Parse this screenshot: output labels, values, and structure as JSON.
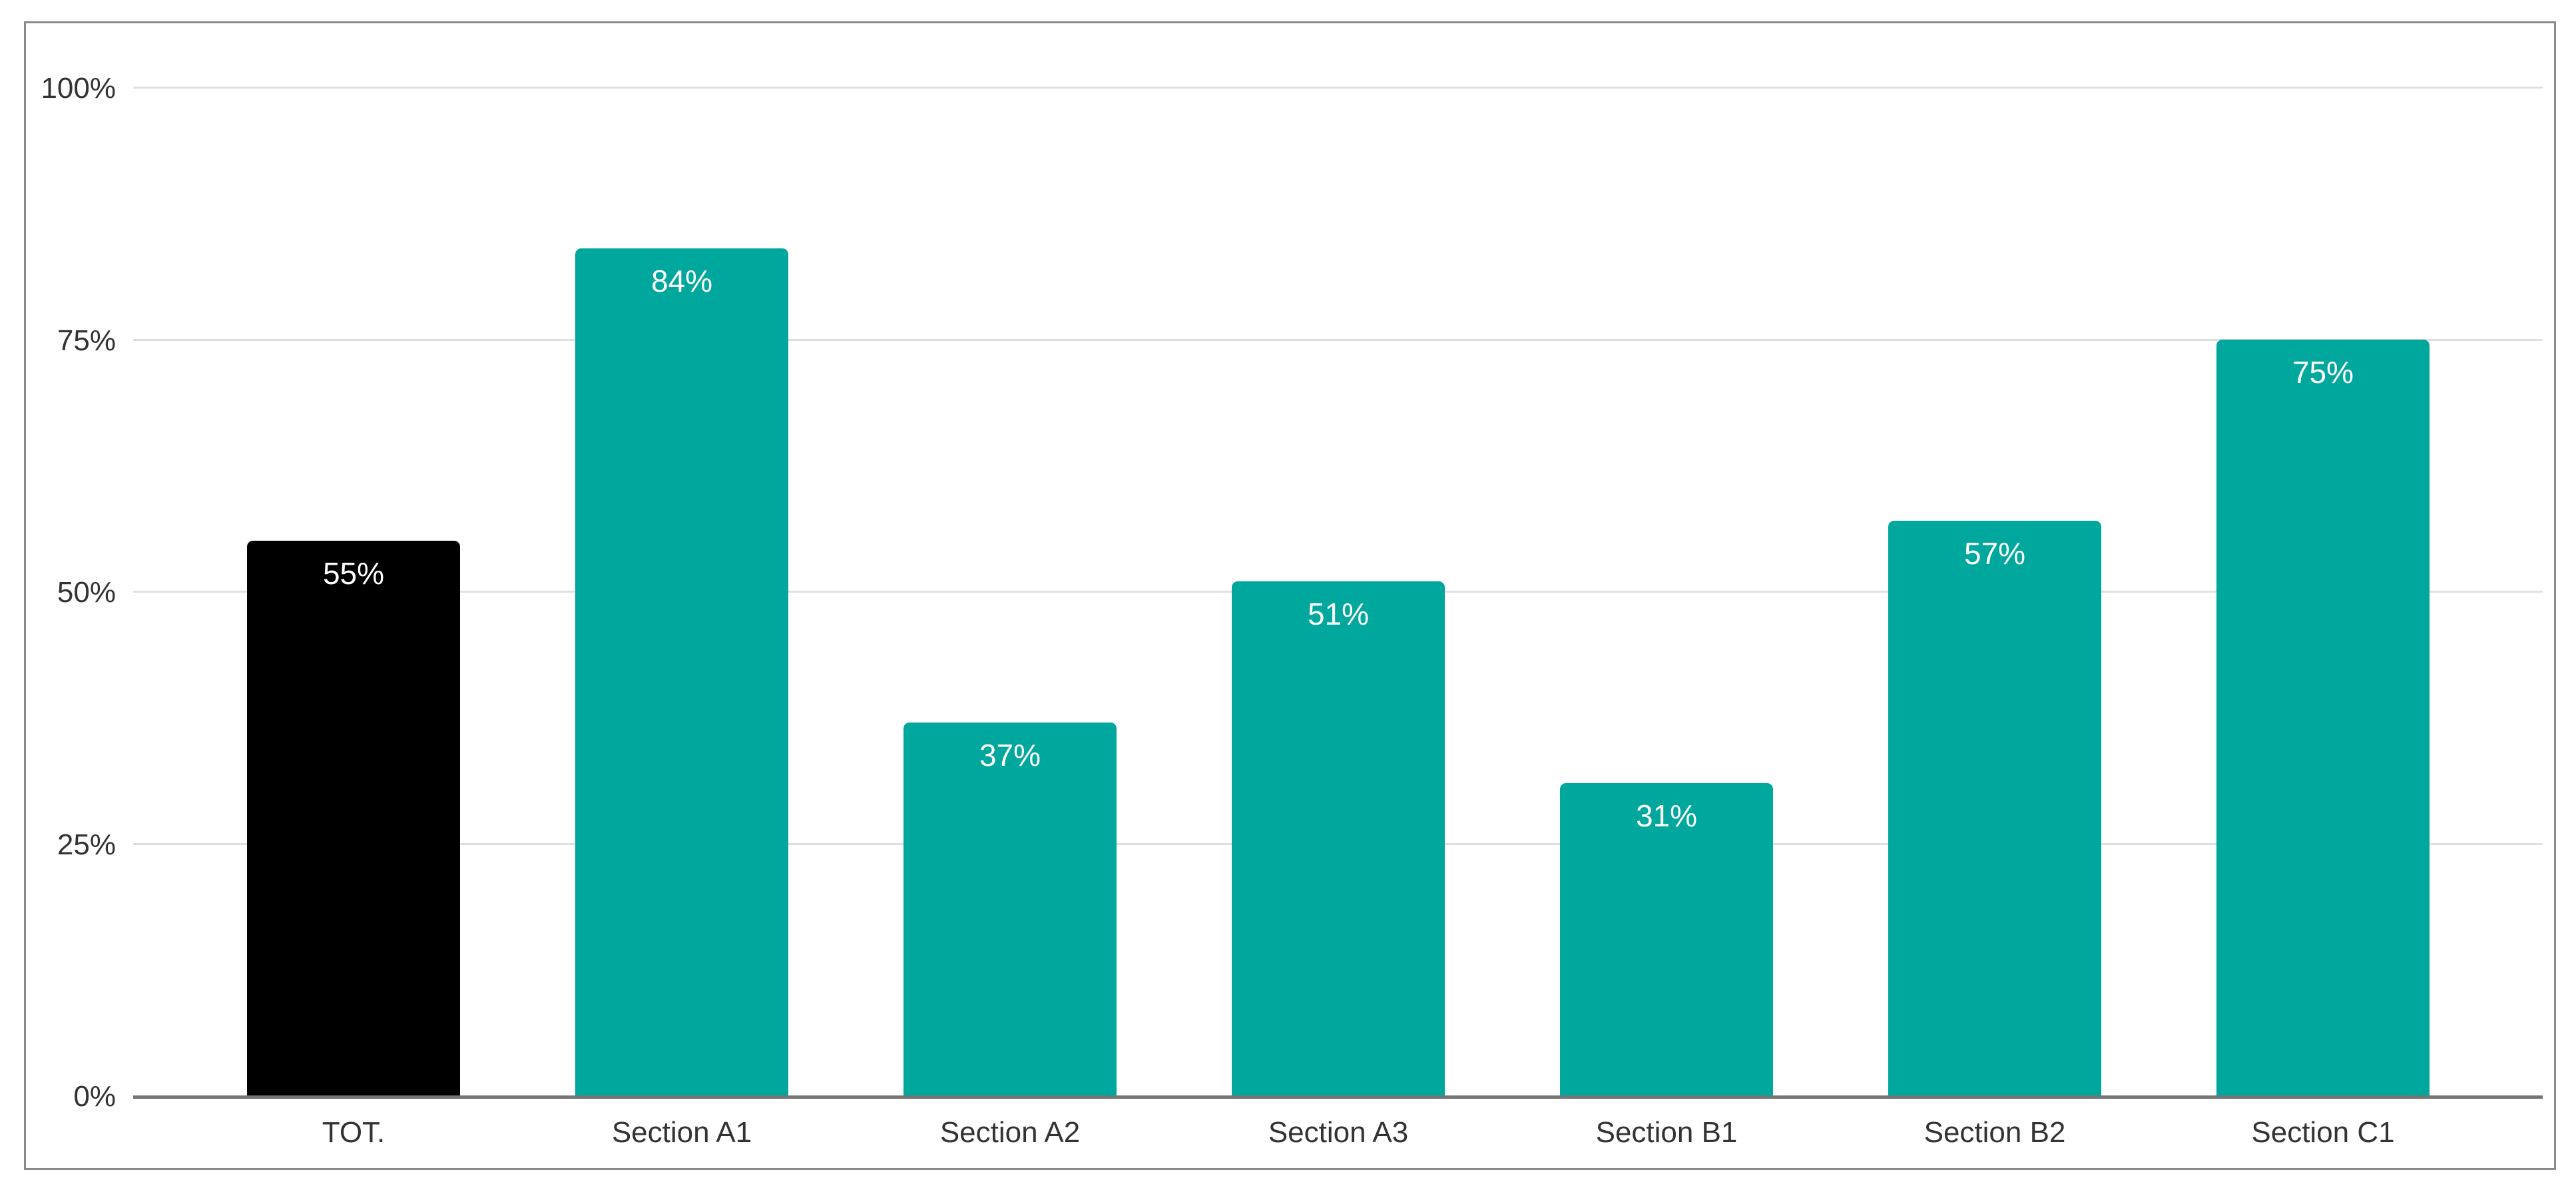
{
  "chart_data": {
    "type": "bar",
    "title": "",
    "categories": [
      "TOT.",
      "Section A1",
      "Section A2",
      "Section A3",
      "Section B1",
      "Section B2",
      "Section C1"
    ],
    "values": [
      55,
      84,
      37,
      51,
      31,
      57,
      75
    ],
    "value_labels": [
      "55%",
      "84%",
      "37%",
      "51%",
      "31%",
      "57%",
      "75%"
    ],
    "bar_colors": [
      "#000000",
      "#00A79C",
      "#00A79C",
      "#00A79C",
      "#00A79C",
      "#00A79C",
      "#00A79C"
    ],
    "ylim": [
      0,
      100
    ],
    "yticks": [
      0,
      25,
      50,
      75,
      100
    ],
    "ytick_labels": [
      "0%",
      "25%",
      "50%",
      "75%",
      "100%"
    ],
    "xlabel": "",
    "ylabel": "",
    "grid": true,
    "legend": "none"
  },
  "colors": {
    "bar_total": "#000000",
    "bar_default": "#00A79C",
    "gridline": "#E0E0E0",
    "axis_line": "#757575",
    "frame_border": "#8A8A8A",
    "axis_text": "#333333",
    "value_label_text": "#FFFFFF",
    "background": "#FFFFFF"
  }
}
